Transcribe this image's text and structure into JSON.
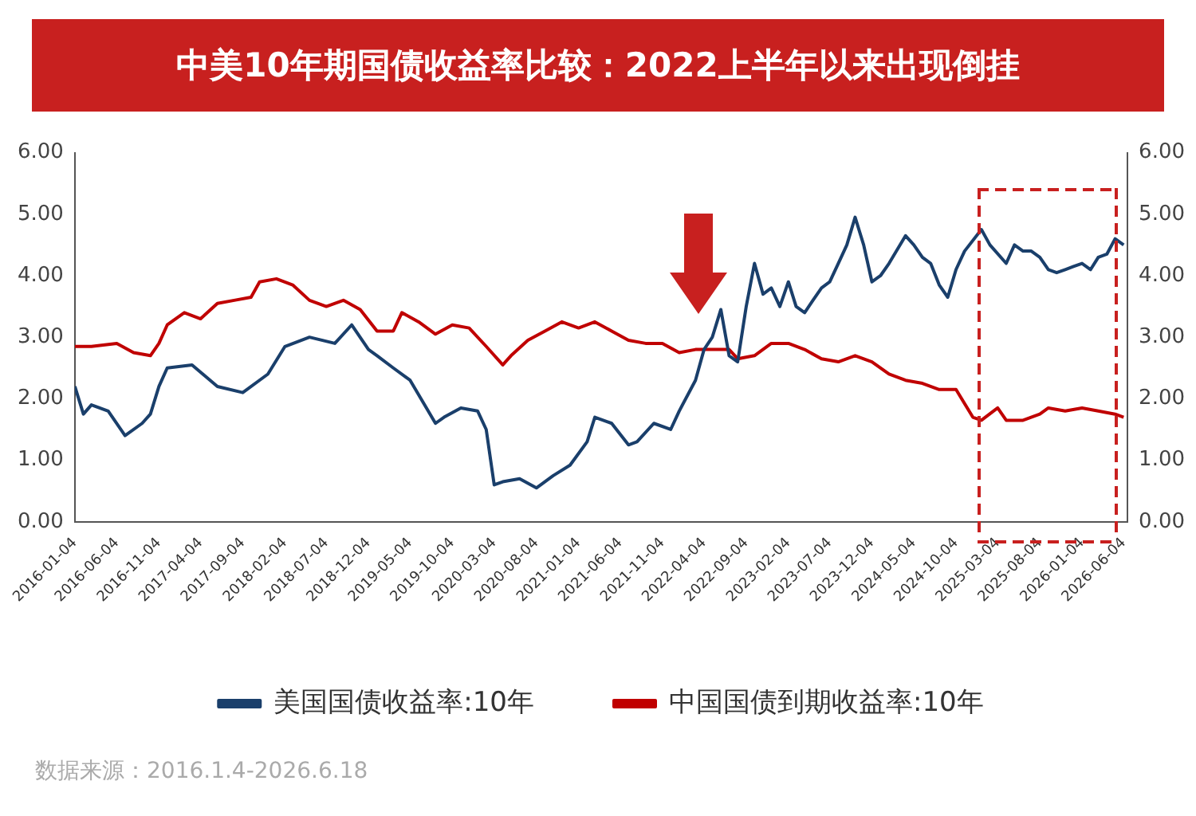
{
  "chart_data": {
    "type": "line",
    "title": "中美10年期国债收益率比较：2022上半年以来出现倒挂",
    "annotations": [
      "数据来源：2016.1.4-2026.6.18"
    ],
    "xlim": [
      "2016-01-04",
      "2026-06-18"
    ],
    "xticks": [
      "2016-01-04",
      "2016-06-04",
      "2016-11-04",
      "2017-04-04",
      "2017-09-04",
      "2018-02-04",
      "2018-07-04",
      "2018-12-04",
      "2019-05-04",
      "2019-10-04",
      "2020-03-04",
      "2020-08-04",
      "2021-01-04",
      "2021-06-04",
      "2021-11-04",
      "2022-04-04",
      "2022-09-04",
      "2023-02-04",
      "2023-07-04",
      "2023-12-04",
      "2024-05-04",
      "2024-10-04",
      "2025-03-04",
      "2025-08-04",
      "2026-01-04",
      "2026-06-04"
    ],
    "ylim": [
      0,
      6
    ],
    "yticks": [
      {
        "value": 0,
        "label": "0.00"
      },
      {
        "value": 1,
        "label": "1.00"
      },
      {
        "value": 2,
        "label": "2.00"
      },
      {
        "value": 3,
        "label": "3.00"
      },
      {
        "value": 4,
        "label": "4.00"
      },
      {
        "value": 5,
        "label": "5.00"
      },
      {
        "value": 6,
        "label": "6.00"
      }
    ],
    "y2lim": [
      0,
      6
    ],
    "y2ticks": [
      {
        "value": 0,
        "label": "0.00"
      },
      {
        "value": 1,
        "label": "1.00"
      },
      {
        "value": 2,
        "label": "2.00"
      },
      {
        "value": 3,
        "label": "3.00"
      },
      {
        "value": 4,
        "label": "4.00"
      },
      {
        "value": 5,
        "label": "5.00"
      },
      {
        "value": 6,
        "label": "6.00"
      }
    ],
    "grid": false,
    "legend": "bottom",
    "marker": "none",
    "line_style": "solid",
    "series": [
      {
        "name": "美国国债收益率:10年",
        "color": "#1a3f6b",
        "x": [
          "2016-01-04",
          "2016-02",
          "2016-03",
          "2016-05",
          "2016-07",
          "2016-09",
          "2016-10",
          "2016-11",
          "2016-12",
          "2017-03",
          "2017-06",
          "2017-09",
          "2017-12",
          "2018-02",
          "2018-05",
          "2018-08",
          "2018-10",
          "2018-12",
          "2019-01",
          "2019-03",
          "2019-05",
          "2019-08",
          "2019-09",
          "2019-11",
          "2020-01",
          "2020-02",
          "2020-03",
          "2020-04",
          "2020-06",
          "2020-08",
          "2020-10",
          "2020-12",
          "2021-02",
          "2021-03",
          "2021-05",
          "2021-07",
          "2021-08",
          "2021-10",
          "2021-12",
          "2022-01",
          "2022-03",
          "2022-04",
          "2022-05",
          "2022-06",
          "2022-07",
          "2022-08",
          "2022-09",
          "2022-10",
          "2022-11",
          "2022-12",
          "2023-01",
          "2023-02",
          "2023-03",
          "2023-04",
          "2023-05",
          "2023-06",
          "2023-07",
          "2023-08",
          "2023-09",
          "2023-10",
          "2023-11",
          "2023-12",
          "2024-01",
          "2024-02",
          "2024-04",
          "2024-05",
          "2024-06",
          "2024-07",
          "2024-08",
          "2024-09",
          "2024-10",
          "2024-11",
          "2025-01",
          "2025-02",
          "2025-04",
          "2025-05",
          "2025-06",
          "2025-07",
          "2025-08",
          "2025-09",
          "2025-10",
          "2025-11",
          "2025-12",
          "2026-01",
          "2026-02",
          "2026-03",
          "2026-04",
          "2026-05",
          "2026-06"
        ],
        "values": [
          2.2,
          1.75,
          1.9,
          1.8,
          1.4,
          1.6,
          1.75,
          2.2,
          2.5,
          2.55,
          2.2,
          2.1,
          2.4,
          2.85,
          3.0,
          2.9,
          3.2,
          2.8,
          2.7,
          2.5,
          2.3,
          1.6,
          1.7,
          1.85,
          1.8,
          1.5,
          0.6,
          0.65,
          0.7,
          0.55,
          0.75,
          0.92,
          1.3,
          1.7,
          1.6,
          1.25,
          1.3,
          1.6,
          1.5,
          1.8,
          2.3,
          2.8,
          3.0,
          3.45,
          2.7,
          2.6,
          3.5,
          4.2,
          3.7,
          3.8,
          3.5,
          3.9,
          3.5,
          3.4,
          3.6,
          3.8,
          3.9,
          4.2,
          4.5,
          4.95,
          4.5,
          3.9,
          4.0,
          4.2,
          4.65,
          4.5,
          4.3,
          4.2,
          3.85,
          3.65,
          4.1,
          4.4,
          4.75,
          4.5,
          4.2,
          4.5,
          4.4,
          4.4,
          4.3,
          4.1,
          4.05,
          4.1,
          4.15,
          4.2,
          4.1,
          4.3,
          4.35,
          4.6,
          4.5
        ]
      },
      {
        "name": "中国国债到期收益率:10年",
        "color": "#c00000",
        "x": [
          "2016-01-04",
          "2016-03",
          "2016-06",
          "2016-08",
          "2016-10",
          "2016-11",
          "2016-12",
          "2017-02",
          "2017-04",
          "2017-06",
          "2017-08",
          "2017-10",
          "2017-11",
          "2018-01",
          "2018-03",
          "2018-05",
          "2018-07",
          "2018-09",
          "2018-11",
          "2019-01",
          "2019-03",
          "2019-04",
          "2019-06",
          "2019-08",
          "2019-10",
          "2019-12",
          "2020-02",
          "2020-04",
          "2020-05",
          "2020-07",
          "2020-09",
          "2020-11",
          "2021-01",
          "2021-03",
          "2021-05",
          "2021-07",
          "2021-09",
          "2021-11",
          "2022-01",
          "2022-03",
          "2022-05",
          "2022-07",
          "2022-08",
          "2022-10",
          "2022-12",
          "2023-02",
          "2023-04",
          "2023-06",
          "2023-08",
          "2023-10",
          "2023-12",
          "2024-02",
          "2024-04",
          "2024-06",
          "2024-08",
          "2024-10",
          "2024-12",
          "2025-01",
          "2025-03",
          "2025-04",
          "2025-06",
          "2025-08",
          "2025-09",
          "2025-11",
          "2026-01",
          "2026-03",
          "2026-05",
          "2026-06"
        ],
        "values": [
          2.85,
          2.85,
          2.9,
          2.75,
          2.7,
          2.9,
          3.2,
          3.4,
          3.3,
          3.55,
          3.6,
          3.65,
          3.9,
          3.95,
          3.85,
          3.6,
          3.5,
          3.6,
          3.45,
          3.1,
          3.1,
          3.4,
          3.25,
          3.05,
          3.2,
          3.15,
          2.85,
          2.55,
          2.7,
          2.95,
          3.1,
          3.25,
          3.15,
          3.25,
          3.1,
          2.95,
          2.9,
          2.9,
          2.75,
          2.8,
          2.8,
          2.8,
          2.65,
          2.7,
          2.9,
          2.9,
          2.8,
          2.65,
          2.6,
          2.7,
          2.6,
          2.4,
          2.3,
          2.25,
          2.15,
          2.15,
          1.7,
          1.65,
          1.85,
          1.65,
          1.65,
          1.75,
          1.85,
          1.8,
          1.85,
          1.8,
          1.75,
          1.7
        ]
      }
    ]
  }
}
